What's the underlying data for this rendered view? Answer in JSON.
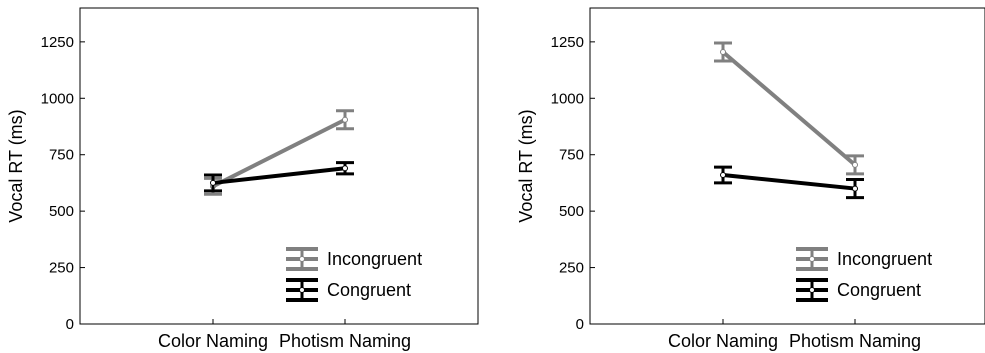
{
  "chart_data": [
    {
      "type": "line",
      "ylabel": "Vocal RT (ms)",
      "xlabel": "",
      "categories": [
        "Color Naming",
        "Photism Naming"
      ],
      "ylim": [
        0,
        1400
      ],
      "yticks": [
        0,
        250,
        500,
        750,
        1000,
        1250
      ],
      "legend_position": "bottom-right",
      "grid": false,
      "series": [
        {
          "name": "Incongruent",
          "color": "#808080",
          "values": [
            610,
            905
          ],
          "errors": [
            35,
            40
          ]
        },
        {
          "name": "Congruent",
          "color": "#000000",
          "values": [
            625,
            690
          ],
          "errors": [
            35,
            25
          ]
        }
      ]
    },
    {
      "type": "line",
      "ylabel": "Vocal RT (ms)",
      "xlabel": "",
      "categories": [
        "Color Naming",
        "Photism Naming"
      ],
      "ylim": [
        0,
        1400
      ],
      "yticks": [
        0,
        250,
        500,
        750,
        1000,
        1250
      ],
      "legend_position": "bottom-right",
      "grid": false,
      "series": [
        {
          "name": "Incongruent",
          "color": "#808080",
          "values": [
            1205,
            705
          ],
          "errors": [
            40,
            40
          ]
        },
        {
          "name": "Congruent",
          "color": "#000000",
          "values": [
            660,
            600
          ],
          "errors": [
            35,
            40
          ]
        }
      ]
    }
  ]
}
